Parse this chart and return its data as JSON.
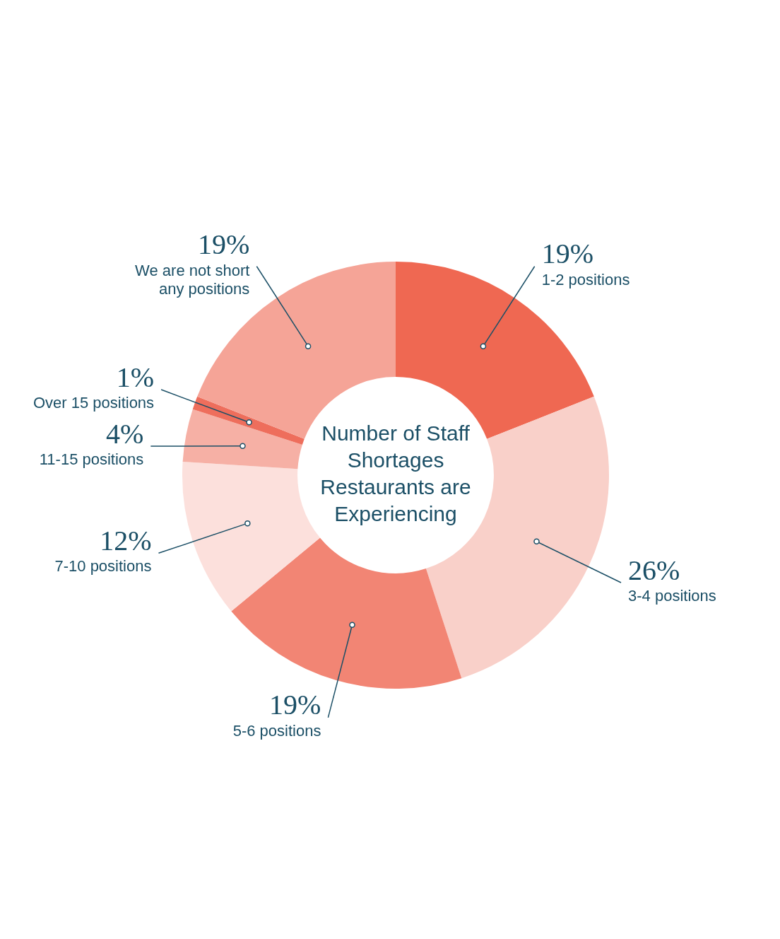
{
  "chart_data": {
    "type": "donut",
    "title": "Number of Staff Shortages Restaurants are Experiencing",
    "categories": [
      "1-2 positions",
      "3-4 positions",
      "5-6 positions",
      "7-10 positions",
      "11-15 positions",
      "Over 15 positions",
      "We are not short any positions"
    ],
    "values": [
      19,
      26,
      19,
      12,
      4,
      1,
      19
    ],
    "colors": [
      "#ef6852",
      "#f9d0c9",
      "#f28574",
      "#fce0dc",
      "#f6b0a5",
      "#ee6e5c",
      "#f5a497"
    ],
    "value_labels": [
      "19%",
      "26%",
      "19%",
      "12%",
      "4%",
      "1%",
      "19%"
    ],
    "legend": false
  }
}
